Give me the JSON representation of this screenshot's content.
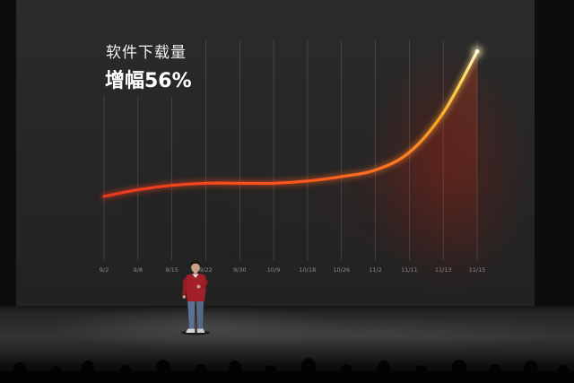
{
  "chart_data": {
    "type": "line",
    "title": "软件下载量",
    "subtitle": "增幅56%",
    "xlabel": "",
    "ylabel": "",
    "categories": [
      "9/2",
      "9/8",
      "9/15",
      "9/22",
      "9/30",
      "10/9",
      "10/18",
      "10/26",
      "11/2",
      "11/11",
      "11/13",
      "11/15"
    ],
    "series": [
      {
        "values": [
          29,
          32,
          34,
          35,
          35,
          35,
          36,
          38,
          41,
          49,
          67,
          95
        ]
      }
    ],
    "ylim": [
      0,
      100
    ],
    "grid": true,
    "legend": "none"
  },
  "colors": {
    "screen_background": "#282828",
    "line_start": "#e8381c",
    "line_mid": "#ff5a1e",
    "line_end": "#fff6c8",
    "presenter_sweater": "#a3202a",
    "presenter_jeans": "#5d7290"
  }
}
